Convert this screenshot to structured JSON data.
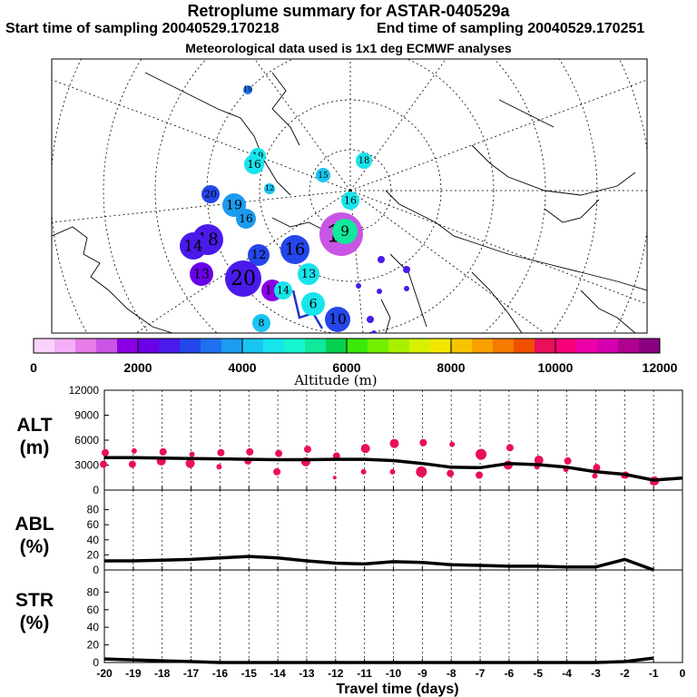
{
  "header": {
    "title": "Retroplume summary for ASTAR-040529a",
    "start": "Start time of sampling 20040529.170218",
    "end": "End time of sampling 20040529.170251",
    "met": "Meteorological data used is 1x1 deg ECMWF analyses"
  },
  "map": {
    "altitude_label": "Altitude (m)",
    "clusters": [
      {
        "day": "19",
        "alt": 3500
      },
      {
        "day": "19",
        "alt": 4500
      },
      {
        "day": "16",
        "alt": 4600
      },
      {
        "day": "15",
        "alt": 4200
      },
      {
        "day": "18",
        "alt": 4500
      },
      {
        "day": "16",
        "alt": 4400
      },
      {
        "day": "20",
        "alt": 3000
      },
      {
        "day": "19",
        "alt": 3600
      },
      {
        "day": "16",
        "alt": 3900
      },
      {
        "day": "12",
        "alt": 4300
      },
      {
        "day": "18",
        "alt": 2600
      },
      {
        "day": "14",
        "alt": 2600
      },
      {
        "day": "12",
        "alt": 2800
      },
      {
        "day": "13",
        "alt": 2300
      },
      {
        "day": "20",
        "alt": 2500
      },
      {
        "day": "16",
        "alt": 2800
      },
      {
        "day": "8",
        "alt": 4300
      },
      {
        "day": "11",
        "alt": 1800
      },
      {
        "day": "10",
        "alt": 1200
      },
      {
        "day": "9",
        "alt": 5200
      },
      {
        "day": "6",
        "alt": 4600
      },
      {
        "day": "14",
        "alt": 4600
      },
      {
        "day": "13",
        "alt": 4600
      },
      {
        "day": "10",
        "alt": 2800
      }
    ]
  },
  "colorbar": {
    "ticks": [
      "0",
      "2000",
      "4000",
      "6000",
      "8000",
      "10000",
      "12000"
    ],
    "colors": [
      "#f9d2f9",
      "#f3aef7",
      "#e67de8",
      "#c955e4",
      "#8c00e6",
      "#6a00e8",
      "#4a1aeb",
      "#2446ea",
      "#1f70ee",
      "#1c9bef",
      "#1ac4f0",
      "#18e4ec",
      "#16f5d0",
      "#10e89a",
      "#07d050",
      "#3be80a",
      "#73ee00",
      "#a9f000",
      "#d6f000",
      "#f2e600",
      "#f7c400",
      "#f7a000",
      "#f47a00",
      "#ef5000",
      "#ea0f5a",
      "#f5007a",
      "#ec00a8",
      "#d400b0",
      "#b00090",
      "#8a0080"
    ]
  },
  "panels": {
    "alt_label_1": "ALT",
    "alt_label_2": "(m)",
    "abl_label_1": "ABL",
    "abl_label_2": "(%)",
    "str_label_1": "STR",
    "str_label_2": "(%)",
    "alt_ticks": [
      "12000",
      "9000",
      "6000",
      "3000",
      "0"
    ],
    "pct_ticks": [
      "80",
      "60",
      "40",
      "20",
      "0"
    ],
    "x_ticks": [
      "-20",
      "-19",
      "-18",
      "-17",
      "-16",
      "-15",
      "-14",
      "-13",
      "-12",
      "-11",
      "-10",
      "-9",
      "-8",
      "-7",
      "-6",
      "-5",
      "-4",
      "-3",
      "-2",
      "-1",
      "0"
    ],
    "xlabel": "Travel time (days)"
  },
  "chart_data": {
    "type": "line",
    "title": "Retroplume summary for ASTAR-040529a",
    "xlabel": "Travel time (days)",
    "x": [
      -20,
      -19,
      -18,
      -17,
      -16,
      -15,
      -14,
      -13,
      -12,
      -11,
      -10,
      -9,
      -8,
      -7,
      -6,
      -5,
      -4,
      -3,
      -2,
      -1,
      0
    ],
    "xlim": [
      -20,
      0
    ],
    "series": [
      {
        "name": "ALT (m)",
        "ylim": [
          0,
          12000
        ],
        "values": [
          3900,
          3900,
          3850,
          3800,
          3750,
          3700,
          3650,
          3650,
          3700,
          3700,
          3550,
          3200,
          2750,
          2700,
          3200,
          3050,
          2750,
          2200,
          1900,
          1200,
          1450
        ]
      },
      {
        "name": "ABL (%)",
        "ylim": [
          0,
          100
        ],
        "values": [
          12,
          12,
          13,
          14,
          16,
          18,
          16,
          12,
          9,
          8,
          11,
          10,
          7,
          6,
          5,
          5,
          4,
          4,
          14,
          0,
          null
        ]
      },
      {
        "name": "STR (%)",
        "ylim": [
          0,
          100
        ],
        "values": [
          4,
          3,
          2,
          1,
          0,
          0,
          0,
          0,
          0,
          0,
          0,
          0,
          0,
          0,
          0,
          0,
          0,
          0,
          1,
          5,
          null
        ]
      }
    ],
    "scatter_clusters": [
      {
        "x": -20,
        "altitudes": [
          4500,
          3100
        ],
        "sizes": [
          3,
          3
        ]
      },
      {
        "x": -19,
        "altitudes": [
          4700,
          3100
        ],
        "sizes": [
          2,
          3
        ]
      },
      {
        "x": -18,
        "altitudes": [
          4600,
          3500
        ],
        "sizes": [
          3,
          4
        ]
      },
      {
        "x": -17,
        "altitudes": [
          4300,
          3200
        ],
        "sizes": [
          2,
          4
        ]
      },
      {
        "x": -16,
        "altitudes": [
          4500,
          2800
        ],
        "sizes": [
          3,
          2
        ]
      },
      {
        "x": -15,
        "altitudes": [
          4600,
          3500
        ],
        "sizes": [
          3,
          3
        ]
      },
      {
        "x": -14,
        "altitudes": [
          4400,
          2200
        ],
        "sizes": [
          3,
          3
        ]
      },
      {
        "x": -13,
        "altitudes": [
          4900,
          3400
        ],
        "sizes": [
          3,
          4
        ]
      },
      {
        "x": -12,
        "altitudes": [
          4100,
          1500
        ],
        "sizes": [
          3,
          1
        ]
      },
      {
        "x": -11,
        "altitudes": [
          5000,
          2200
        ],
        "sizes": [
          4,
          2
        ]
      },
      {
        "x": -10,
        "altitudes": [
          5600,
          2200
        ],
        "sizes": [
          4,
          2
        ]
      },
      {
        "x": -9,
        "altitudes": [
          5700,
          2200
        ],
        "sizes": [
          3,
          5
        ]
      },
      {
        "x": -8,
        "altitudes": [
          5500,
          2000
        ],
        "sizes": [
          2,
          3
        ]
      },
      {
        "x": -7,
        "altitudes": [
          4300,
          1800
        ],
        "sizes": [
          5,
          3
        ]
      },
      {
        "x": -6,
        "altitudes": [
          5100,
          3000
        ],
        "sizes": [
          3,
          4
        ]
      },
      {
        "x": -5,
        "altitudes": [
          3600,
          2800
        ],
        "sizes": [
          4,
          2
        ]
      },
      {
        "x": -4,
        "altitudes": [
          3500,
          2500
        ],
        "sizes": [
          3,
          2
        ]
      },
      {
        "x": -3,
        "altitudes": [
          2700,
          1700
        ],
        "sizes": [
          3,
          2
        ]
      },
      {
        "x": -2,
        "altitudes": [
          1800,
          1700
        ],
        "sizes": [
          3,
          2
        ]
      },
      {
        "x": -1,
        "altitudes": [
          1100,
          900
        ],
        "sizes": [
          4,
          2
        ]
      }
    ]
  }
}
